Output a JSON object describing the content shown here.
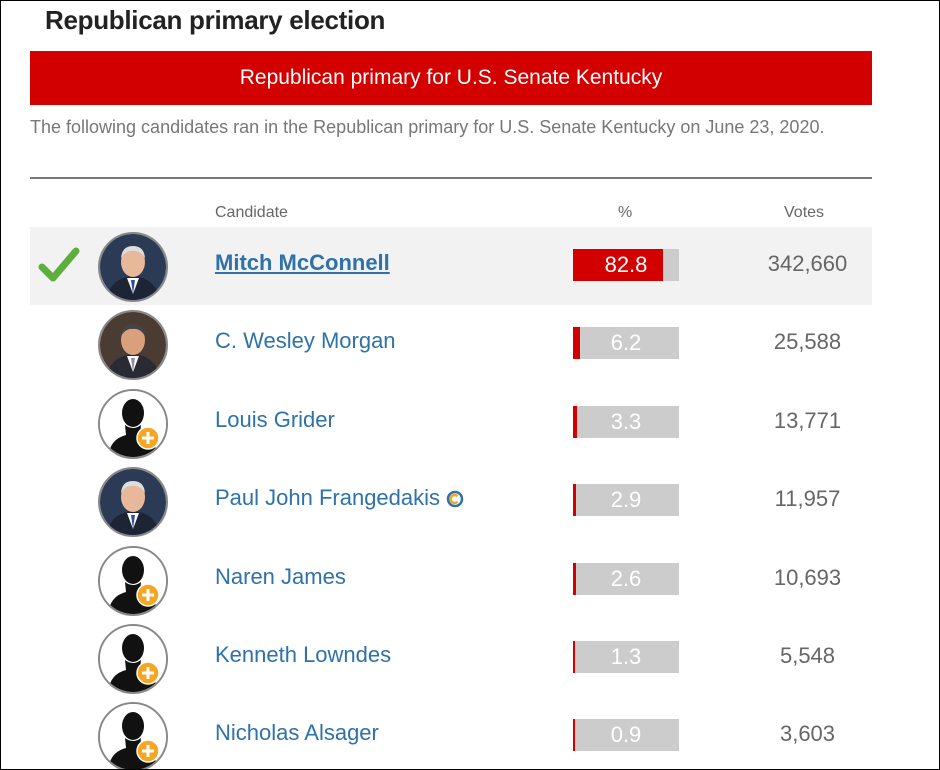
{
  "page_title": "Republican primary election",
  "banner": "Republican primary for U.S. Senate Kentucky",
  "intro": "The following candidates ran in the Republican primary for U.S. Senate Kentucky on June 23, 2020.",
  "columns": {
    "candidate": "Candidate",
    "percent": "%",
    "votes": "Votes"
  },
  "colors": {
    "accent_red": "#d30000",
    "link_blue": "#2e72a8",
    "check_green": "#5cae3f",
    "plus_orange": "#f5a623"
  },
  "candidates": [
    {
      "name": "Mitch McConnell",
      "percent": "82.8",
      "percent_value": 82.8,
      "votes": "342,660",
      "winner": true,
      "avatar": "photo",
      "incumbent": false
    },
    {
      "name": "C. Wesley Morgan",
      "percent": "6.2",
      "percent_value": 6.2,
      "votes": "25,588",
      "winner": false,
      "avatar": "photo",
      "incumbent": false
    },
    {
      "name": "Louis Grider",
      "percent": "3.3",
      "percent_value": 3.3,
      "votes": "13,771",
      "winner": false,
      "avatar": "placeholder",
      "incumbent": false
    },
    {
      "name": "Paul John Frangedakis",
      "percent": "2.9",
      "percent_value": 2.9,
      "votes": "11,957",
      "winner": false,
      "avatar": "photo",
      "incumbent": true
    },
    {
      "name": "Naren James",
      "percent": "2.6",
      "percent_value": 2.6,
      "votes": "10,693",
      "winner": false,
      "avatar": "placeholder",
      "incumbent": false
    },
    {
      "name": "Kenneth Lowndes",
      "percent": "1.3",
      "percent_value": 1.3,
      "votes": "5,548",
      "winner": false,
      "avatar": "placeholder",
      "incumbent": false
    },
    {
      "name": "Nicholas Alsager",
      "percent": "0.9",
      "percent_value": 0.9,
      "votes": "3,603",
      "winner": false,
      "avatar": "placeholder",
      "incumbent": false
    }
  ]
}
